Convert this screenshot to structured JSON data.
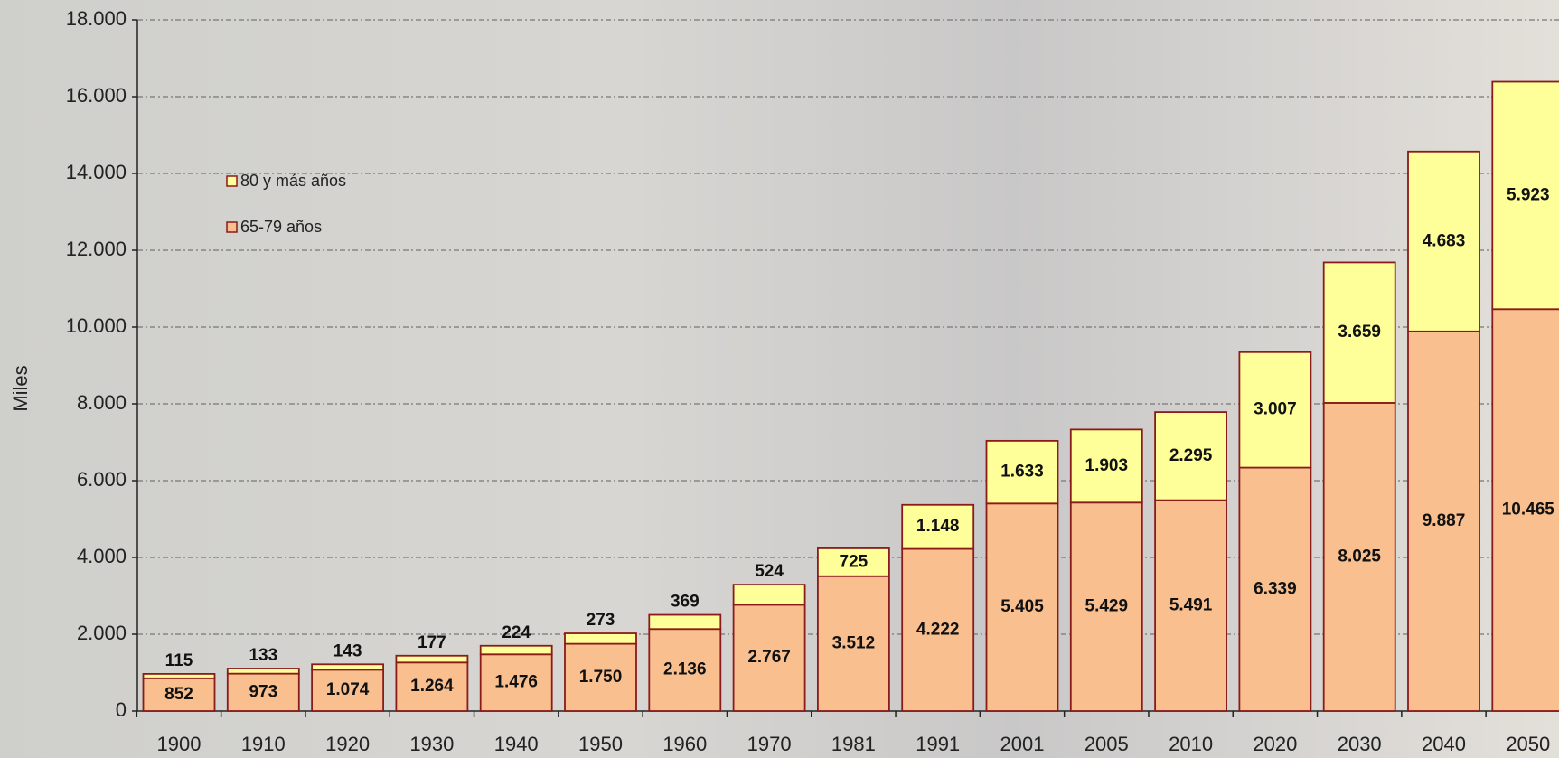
{
  "chart_data": {
    "type": "stacked-bar",
    "ylabel": "Miles",
    "categories": [
      "1900",
      "1910",
      "1920",
      "1930",
      "1940",
      "1950",
      "1960",
      "1970",
      "1981",
      "1991",
      "2001",
      "2005",
      "2010",
      "2020",
      "2030",
      "2040",
      "2050"
    ],
    "series": [
      {
        "name": "65-79 años",
        "color": "#f9bf8f",
        "values": [
          852,
          973,
          1074,
          1264,
          1476,
          1750,
          2136,
          2767,
          3512,
          4222,
          5405,
          5429,
          5491,
          6339,
          8025,
          9887,
          10465
        ],
        "value_labels": [
          "852",
          "973",
          "1.074",
          "1.264",
          "1.476",
          "1.750",
          "2.136",
          "2.767",
          "3.512",
          "4.222",
          "5.405",
          "5.429",
          "5.491",
          "6.339",
          "8.025",
          "9.887",
          "10.465"
        ]
      },
      {
        "name": "80 y más años",
        "color": "#ffff99",
        "values": [
          115,
          133,
          143,
          177,
          224,
          273,
          369,
          524,
          725,
          1148,
          1633,
          1903,
          2295,
          3007,
          3659,
          4683,
          5923
        ],
        "value_labels": [
          "115",
          "133",
          "143",
          "177",
          "224",
          "273",
          "369",
          "524",
          "725",
          "1.148",
          "1.633",
          "1.903",
          "2.295",
          "3.007",
          "3.659",
          "4.683",
          "5.923"
        ]
      }
    ],
    "ylim": [
      0,
      18000
    ],
    "yticks": [
      0,
      {
        "value": 2000,
        "label": "2.000"
      },
      {
        "value": 4000,
        "label": "4.000"
      },
      {
        "value": 6000,
        "label": "6.000"
      },
      {
        "value": 8000,
        "label": "8.000"
      },
      {
        "value": 10000,
        "label": "10.000"
      },
      {
        "value": 12000,
        "label": "12.000"
      },
      {
        "value": 14000,
        "label": "14.000"
      },
      {
        "value": 16000,
        "label": "16.000"
      },
      {
        "value": 18000,
        "label": "18.000"
      }
    ],
    "grid": true
  }
}
